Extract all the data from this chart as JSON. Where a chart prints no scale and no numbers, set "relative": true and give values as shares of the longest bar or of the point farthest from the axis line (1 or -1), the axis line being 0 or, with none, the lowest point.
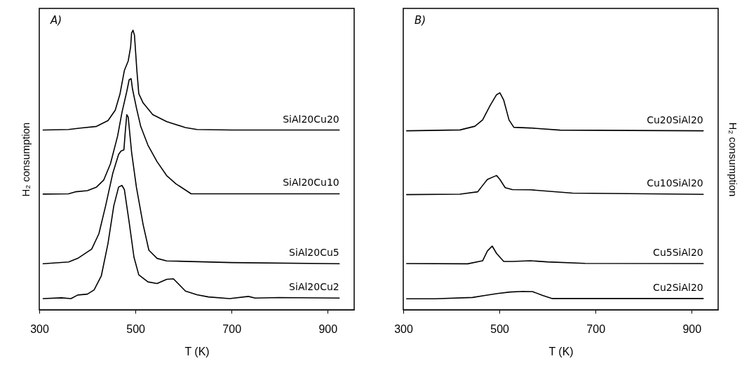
{
  "chart_data": [
    {
      "type": "line",
      "relative": true,
      "xlabel": "T (K)",
      "ylabel": "H₂ consumption",
      "xlim": [
        300,
        955
      ],
      "xticks": [
        300,
        500,
        700,
        900
      ],
      "annotations": [
        "A)"
      ],
      "series": [
        {
          "name": "SiAl20Cu20",
          "color": "#000000",
          "x": [
            308,
            361,
            385,
            419,
            443,
            458,
            468,
            477,
            485,
            490,
            492,
            495,
            498,
            503,
            507,
            516,
            536,
            565,
            604,
            628,
            701,
            924
          ],
          "values": [
            0.643,
            0.645,
            0.65,
            0.656,
            0.677,
            0.714,
            0.773,
            0.856,
            0.89,
            0.94,
            0.99,
            1.0,
            0.982,
            0.856,
            0.773,
            0.74,
            0.698,
            0.673,
            0.652,
            0.645,
            0.643,
            0.643
          ]
        },
        {
          "name": "SiAl20Cu10",
          "color": "#000000",
          "x": [
            308,
            361,
            375,
            400,
            419,
            434,
            448,
            463,
            472,
            482,
            487,
            491,
            494,
            502,
            511,
            526,
            545,
            565,
            584,
            616,
            924
          ],
          "values": [
            0.414,
            0.415,
            0.422,
            0.426,
            0.439,
            0.464,
            0.522,
            0.622,
            0.706,
            0.781,
            0.823,
            0.827,
            0.789,
            0.723,
            0.656,
            0.589,
            0.53,
            0.48,
            0.451,
            0.415,
            0.415
          ]
        },
        {
          "name": "SiAl20Cu5",
          "color": "#000000",
          "x": [
            308,
            361,
            380,
            409,
            424,
            438,
            453,
            465,
            470,
            476,
            479,
            482,
            485,
            492,
            502,
            516,
            528,
            545,
            565,
            701,
            924
          ],
          "values": [
            0.165,
            0.171,
            0.184,
            0.217,
            0.272,
            0.372,
            0.489,
            0.556,
            0.568,
            0.572,
            0.639,
            0.698,
            0.689,
            0.564,
            0.439,
            0.305,
            0.213,
            0.184,
            0.175,
            0.169,
            0.165
          ]
        },
        {
          "name": "SiAl20Cu2",
          "color": "#000000",
          "x": [
            308,
            346,
            366,
            380,
            400,
            414,
            429,
            443,
            455,
            465,
            472,
            477,
            487,
            497,
            507,
            526,
            545,
            565,
            579,
            604,
            628,
            652,
            696,
            735,
            749,
            798,
            924
          ],
          "values": [
            0.04,
            0.043,
            0.04,
            0.053,
            0.056,
            0.071,
            0.121,
            0.238,
            0.372,
            0.439,
            0.445,
            0.43,
            0.313,
            0.188,
            0.125,
            0.1,
            0.094,
            0.109,
            0.111,
            0.067,
            0.054,
            0.046,
            0.04,
            0.048,
            0.042,
            0.044,
            0.042
          ]
        }
      ]
    },
    {
      "type": "line",
      "relative": true,
      "xlabel": "T (K)",
      "ylabel": "H₂ consumption",
      "xlim": [
        300,
        955
      ],
      "xticks": [
        300,
        500,
        700,
        900
      ],
      "annotations": [
        "B)"
      ],
      "series": [
        {
          "name": "Cu20SiAl20",
          "color": "#000000",
          "x": [
            307,
            418,
            449,
            465,
            481,
            494,
            501,
            509,
            520,
            530,
            564,
            626,
            924
          ],
          "values": [
            0.825,
            0.829,
            0.846,
            0.875,
            0.943,
            0.991,
            1.0,
            0.966,
            0.875,
            0.841,
            0.838,
            0.828,
            0.825
          ]
        },
        {
          "name": "Cu10SiAl20",
          "color": "#000000",
          "x": [
            307,
            418,
            455,
            465,
            475,
            494,
            501,
            512,
            527,
            564,
            652,
            924
          ],
          "values": [
            0.531,
            0.533,
            0.544,
            0.573,
            0.601,
            0.619,
            0.601,
            0.563,
            0.554,
            0.553,
            0.538,
            0.532
          ]
        },
        {
          "name": "Cu5SiAl20",
          "color": "#000000",
          "x": [
            307,
            434,
            465,
            475,
            485,
            494,
            509,
            527,
            564,
            600,
            678,
            924
          ],
          "values": [
            0.213,
            0.212,
            0.226,
            0.271,
            0.294,
            0.26,
            0.223,
            0.223,
            0.226,
            0.221,
            0.214,
            0.213
          ]
        },
        {
          "name": "Cu2SiAl20",
          "color": "#000000",
          "x": [
            307,
            366,
            444,
            470,
            496,
            522,
            548,
            569,
            590,
            610,
            924
          ],
          "values": [
            0.051,
            0.051,
            0.057,
            0.066,
            0.075,
            0.082,
            0.085,
            0.084,
            0.066,
            0.052,
            0.052
          ]
        }
      ]
    }
  ]
}
